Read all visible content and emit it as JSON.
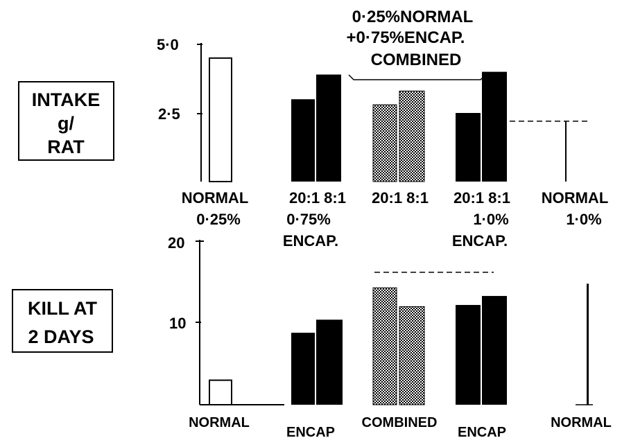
{
  "chart_data": [
    {
      "type": "bar",
      "title_lines": [
        "INTAKE",
        "g/",
        "RAT"
      ],
      "ylim": [
        0,
        5.0
      ],
      "yticks": [
        "5·0",
        "2·5"
      ],
      "ytick_values": [
        5.0,
        2.5
      ],
      "group_labels": [
        [
          "NORMAL",
          "0·25%"
        ],
        [
          "20:1 8:1",
          "0·75%",
          "ENCAP."
        ],
        [
          "20:1 8:1"
        ],
        [
          "20:1 8:1",
          "1·0%",
          "ENCAP."
        ],
        [
          "NORMAL",
          "1·0%"
        ]
      ],
      "annotation": [
        "0·25%NORMAL",
        "+0·75%ENCAP.",
        "COMBINED"
      ],
      "bars": [
        {
          "group": 0,
          "value": 4.5,
          "style": "open"
        },
        {
          "group": 1,
          "value": 3.0,
          "style": "solid"
        },
        {
          "group": 1,
          "value": 3.9,
          "style": "solid"
        },
        {
          "group": 2,
          "value": 2.8,
          "style": "stippled"
        },
        {
          "group": 2,
          "value": 3.3,
          "style": "stippled"
        },
        {
          "group": 3,
          "value": 2.5,
          "style": "solid"
        },
        {
          "group": 3,
          "value": 4.0,
          "style": "solid"
        },
        {
          "group": 4,
          "value": 2.2,
          "style": "line"
        }
      ],
      "reference_value": 2.2
    },
    {
      "type": "bar",
      "title_lines": [
        "KILL AT",
        "2 DAYS"
      ],
      "ylim": [
        0,
        20
      ],
      "yticks": [
        "20",
        "10"
      ],
      "ytick_values": [
        20,
        10
      ],
      "group_labels": [
        "NORMAL",
        "ENCAP",
        "COMBINED",
        "ENCAP",
        "NORMAL"
      ],
      "bars": [
        {
          "group": 0,
          "value": 3.0,
          "style": "open"
        },
        {
          "group": 1,
          "value": 8.8,
          "style": "solid"
        },
        {
          "group": 1,
          "value": 10.4,
          "style": "solid"
        },
        {
          "group": 2,
          "value": 14.3,
          "style": "stippled"
        },
        {
          "group": 2,
          "value": 12.0,
          "style": "stippled"
        },
        {
          "group": 3,
          "value": 12.2,
          "style": "solid"
        },
        {
          "group": 3,
          "value": 13.3,
          "style": "solid"
        },
        {
          "group": 4,
          "value": 14.8,
          "style": "line"
        }
      ],
      "reference_value": 16.2
    }
  ]
}
